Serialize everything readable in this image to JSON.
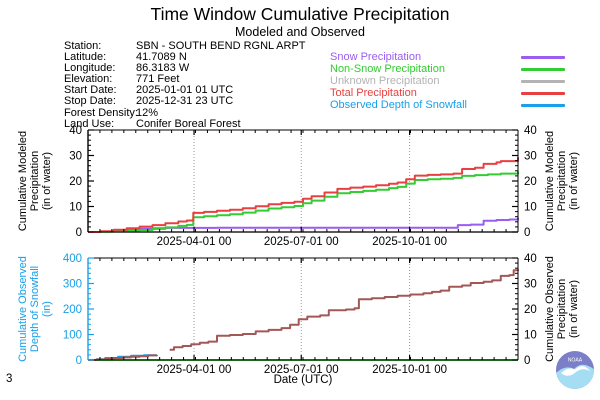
{
  "header": {
    "title": "Time Window Cumulative Precipitation",
    "subtitle": "Modeled and Observed"
  },
  "station": {
    "rows": [
      {
        "label": "Station:",
        "value": "SBN - SOUTH BEND RGNL ARPT"
      },
      {
        "label": "Latitude:",
        "value": "41.7089 N"
      },
      {
        "label": "Longitude:",
        "value": "86.3183 W"
      },
      {
        "label": "Elevation:",
        "value": "771 Feet"
      },
      {
        "label": "Start Date:",
        "value": "2025-01-01 01 UTC"
      },
      {
        "label": "Stop Date:",
        "value": "2025-12-31 23 UTC"
      },
      {
        "label": "Forest Density:",
        "value": "12%"
      },
      {
        "label": "Land Use:",
        "value": "Conifer Boreal Forest"
      }
    ]
  },
  "legend": {
    "items": [
      {
        "label": "Snow Precipitation",
        "color": "#9b5cf0"
      },
      {
        "label": "Non-Snow Precipitation",
        "color": "#33cc33"
      },
      {
        "label": "Unknown Precipitation",
        "color": "#b3b3b3"
      },
      {
        "label": "Total Precipitation",
        "color": "#e84040"
      },
      {
        "label": "Observed Depth of Snowfall",
        "color": "#18a0e8"
      }
    ]
  },
  "footer": {
    "xlabel": "Date (UTC)",
    "page_number": "3",
    "logo": "NOAA"
  },
  "chart_data": [
    {
      "type": "line",
      "name": "modeled-cumulative-precipitation",
      "grid": "vertical-dotted-at-major-ticks",
      "x": {
        "tick_labels": [
          "2025-04-01 00",
          "2025-07-01 00",
          "2025-10-01 00"
        ],
        "tick_pos": [
          0.2466,
          0.4959,
          0.7479
        ],
        "range_labels": [
          "2025-01-01 01 UTC",
          "2025-12-31 23 UTC"
        ]
      },
      "y_left": {
        "title_lines": [
          "Cumulative Modeled",
          "Precipitation",
          "(in of water)"
        ],
        "min": 0,
        "max": 40,
        "ticks": [
          0,
          10,
          20,
          30,
          40
        ],
        "minor_step": 2,
        "color": "#000000"
      },
      "y_right": {
        "title_lines": [
          "Cumulative Modeled",
          "Precipitation",
          "(in of water)"
        ],
        "min": 0,
        "max": 40,
        "ticks": [
          0,
          10,
          20,
          30,
          40
        ],
        "minor_step": 2,
        "color": "#000000"
      },
      "series": [
        {
          "name": "Unknown Precipitation",
          "color": "#b3b3b3",
          "axis": "left",
          "segments": [
            [
              [
                0,
                0
              ],
              [
                1,
                0
              ]
            ]
          ]
        },
        {
          "name": "Snow Precipitation",
          "color": "#9b5cf0",
          "axis": "left",
          "segments": [
            [
              [
                0,
                0
              ],
              [
                0.03,
                0.2
              ],
              [
                0.06,
                0.6
              ],
              [
                0.09,
                1.0
              ],
              [
                0.12,
                1.3
              ],
              [
                0.15,
                1.5
              ],
              [
                0.18,
                1.6
              ],
              [
                0.3,
                1.7
              ],
              [
                0.84,
                1.7
              ],
              [
                0.86,
                2.7
              ],
              [
                0.89,
                2.9
              ],
              [
                0.92,
                4.4
              ],
              [
                0.95,
                4.7
              ],
              [
                0.98,
                4.9
              ],
              [
                1,
                5.6
              ]
            ]
          ]
        },
        {
          "name": "Non-Snow Precipitation",
          "color": "#33cc33",
          "axis": "left",
          "segments": [
            [
              [
                0,
                0
              ],
              [
                0.03,
                0.1
              ],
              [
                0.06,
                0.3
              ],
              [
                0.09,
                0.5
              ],
              [
                0.12,
                0.8
              ],
              [
                0.15,
                1.2
              ],
              [
                0.18,
                1.8
              ],
              [
                0.21,
                2.4
              ],
              [
                0.23,
                2.8
              ],
              [
                0.245,
                5.8
              ],
              [
                0.27,
                6.2
              ],
              [
                0.3,
                6.6
              ],
              [
                0.33,
                7.0
              ],
              [
                0.36,
                7.6
              ],
              [
                0.39,
                8.4
              ],
              [
                0.42,
                9.2
              ],
              [
                0.45,
                9.7
              ],
              [
                0.48,
                10.2
              ],
              [
                0.5,
                11.3
              ],
              [
                0.52,
                12.3
              ],
              [
                0.55,
                13.8
              ],
              [
                0.58,
                15.2
              ],
              [
                0.61,
                15.7
              ],
              [
                0.64,
                16.1
              ],
              [
                0.67,
                16.6
              ],
              [
                0.7,
                17.2
              ],
              [
                0.72,
                17.7
              ],
              [
                0.74,
                19.0
              ],
              [
                0.76,
                20.4
              ],
              [
                0.79,
                20.7
              ],
              [
                0.82,
                20.9
              ],
              [
                0.85,
                21.2
              ],
              [
                0.87,
                22.0
              ],
              [
                0.9,
                22.3
              ],
              [
                0.93,
                22.6
              ],
              [
                0.96,
                22.9
              ],
              [
                1,
                23.7
              ]
            ]
          ]
        },
        {
          "name": "Total Precipitation",
          "color": "#e84040",
          "axis": "left",
          "segments": [
            [
              [
                0,
                0
              ],
              [
                0.03,
                0.3
              ],
              [
                0.06,
                0.9
              ],
              [
                0.09,
                1.5
              ],
              [
                0.12,
                2.1
              ],
              [
                0.15,
                2.7
              ],
              [
                0.18,
                3.4
              ],
              [
                0.21,
                4.1
              ],
              [
                0.23,
                4.5
              ],
              [
                0.245,
                7.5
              ],
              [
                0.27,
                7.9
              ],
              [
                0.3,
                8.3
              ],
              [
                0.33,
                8.7
              ],
              [
                0.36,
                9.3
              ],
              [
                0.39,
                10.1
              ],
              [
                0.42,
                10.9
              ],
              [
                0.45,
                11.4
              ],
              [
                0.48,
                11.9
              ],
              [
                0.5,
                13.0
              ],
              [
                0.52,
                14.0
              ],
              [
                0.55,
                15.5
              ],
              [
                0.58,
                16.9
              ],
              [
                0.61,
                17.4
              ],
              [
                0.64,
                17.8
              ],
              [
                0.67,
                18.3
              ],
              [
                0.7,
                18.9
              ],
              [
                0.72,
                19.4
              ],
              [
                0.74,
                20.7
              ],
              [
                0.76,
                22.1
              ],
              [
                0.79,
                22.4
              ],
              [
                0.82,
                22.6
              ],
              [
                0.85,
                22.9
              ],
              [
                0.87,
                24.7
              ],
              [
                0.9,
                25.2
              ],
              [
                0.92,
                26.7
              ],
              [
                0.95,
                27.3
              ],
              [
                0.96,
                27.8
              ],
              [
                1,
                29.3
              ]
            ]
          ]
        }
      ]
    },
    {
      "type": "line",
      "name": "observed-cumulative-snowfall-and-precipitation",
      "grid": "vertical-dotted-at-major-ticks",
      "x": {
        "tick_labels": [
          "2025-04-01 00",
          "2025-07-01 00",
          "2025-10-01 00"
        ],
        "tick_pos": [
          0.2466,
          0.4959,
          0.7479
        ],
        "range_labels": [
          "2025-01-01 01 UTC",
          "2025-12-31 23 UTC"
        ]
      },
      "y_left": {
        "title_lines": [
          "Cumulative Observed",
          "Depth of Snowfall",
          "(in)"
        ],
        "min": 0,
        "max": 400,
        "ticks": [
          0,
          100,
          200,
          300,
          400
        ],
        "minor_step": 20,
        "color": "#18a0e8"
      },
      "y_right": {
        "title_lines": [
          "Cumulative Observed",
          "Precipitation",
          "(in of water)"
        ],
        "min": 0,
        "max": 40,
        "ticks": [
          0,
          10,
          20,
          30,
          40
        ],
        "minor_step": 2,
        "color": "#000000"
      },
      "series": [
        {
          "name": "Observed Depth of Snowfall",
          "color": "#18a0e8",
          "axis": "left",
          "segments": [
            [
              [
                0,
                0
              ],
              [
                0.02,
                3
              ],
              [
                0.04,
                8
              ],
              [
                0.07,
                13
              ],
              [
                0.1,
                17
              ],
              [
                0.13,
                19
              ],
              [
                0.16,
                20
              ]
            ]
          ]
        },
        {
          "name": "Zero baseline (green)",
          "color": "#33cc33",
          "axis": "right",
          "segments": [
            [
              [
                0,
                0
              ],
              [
                1,
                0
              ]
            ]
          ]
        },
        {
          "name": "Observed Precipitation",
          "color": "#a35858",
          "axis": "right",
          "segments": [
            [
              [
                0,
                0
              ],
              [
                0.02,
                0.2
              ],
              [
                0.04,
                0.5
              ],
              [
                0.06,
                0.8
              ],
              [
                0.08,
                1.0
              ],
              [
                0.1,
                1.3
              ],
              [
                0.12,
                1.5
              ],
              [
                0.14,
                1.8
              ],
              [
                0.16,
                2.0
              ]
            ],
            [
              [
                0.19,
                4.0
              ],
              [
                0.2,
                5.0
              ],
              [
                0.22,
                5.5
              ],
              [
                0.24,
                6.2
              ],
              [
                0.26,
                6.8
              ],
              [
                0.28,
                7.2
              ],
              [
                0.3,
                9.5
              ],
              [
                0.33,
                9.8
              ],
              [
                0.36,
                10.2
              ],
              [
                0.39,
                11.2
              ],
              [
                0.42,
                11.8
              ],
              [
                0.45,
                12.5
              ],
              [
                0.47,
                13.8
              ],
              [
                0.49,
                16.0
              ],
              [
                0.51,
                17.0
              ],
              [
                0.54,
                17.5
              ],
              [
                0.56,
                19.5
              ],
              [
                0.6,
                19.8
              ],
              [
                0.62,
                20.3
              ],
              [
                0.63,
                23.8
              ],
              [
                0.66,
                24.2
              ],
              [
                0.69,
                24.7
              ],
              [
                0.72,
                25.2
              ],
              [
                0.75,
                25.7
              ],
              [
                0.78,
                26.2
              ],
              [
                0.8,
                26.7
              ],
              [
                0.82,
                27.2
              ],
              [
                0.84,
                28.7
              ],
              [
                0.87,
                29.2
              ],
              [
                0.89,
                30.2
              ],
              [
                0.92,
                30.7
              ],
              [
                0.94,
                31.2
              ],
              [
                0.96,
                33.0
              ],
              [
                0.98,
                33.3
              ],
              [
                0.99,
                35.2
              ],
              [
                1,
                35.5
              ]
            ]
          ]
        }
      ]
    }
  ]
}
